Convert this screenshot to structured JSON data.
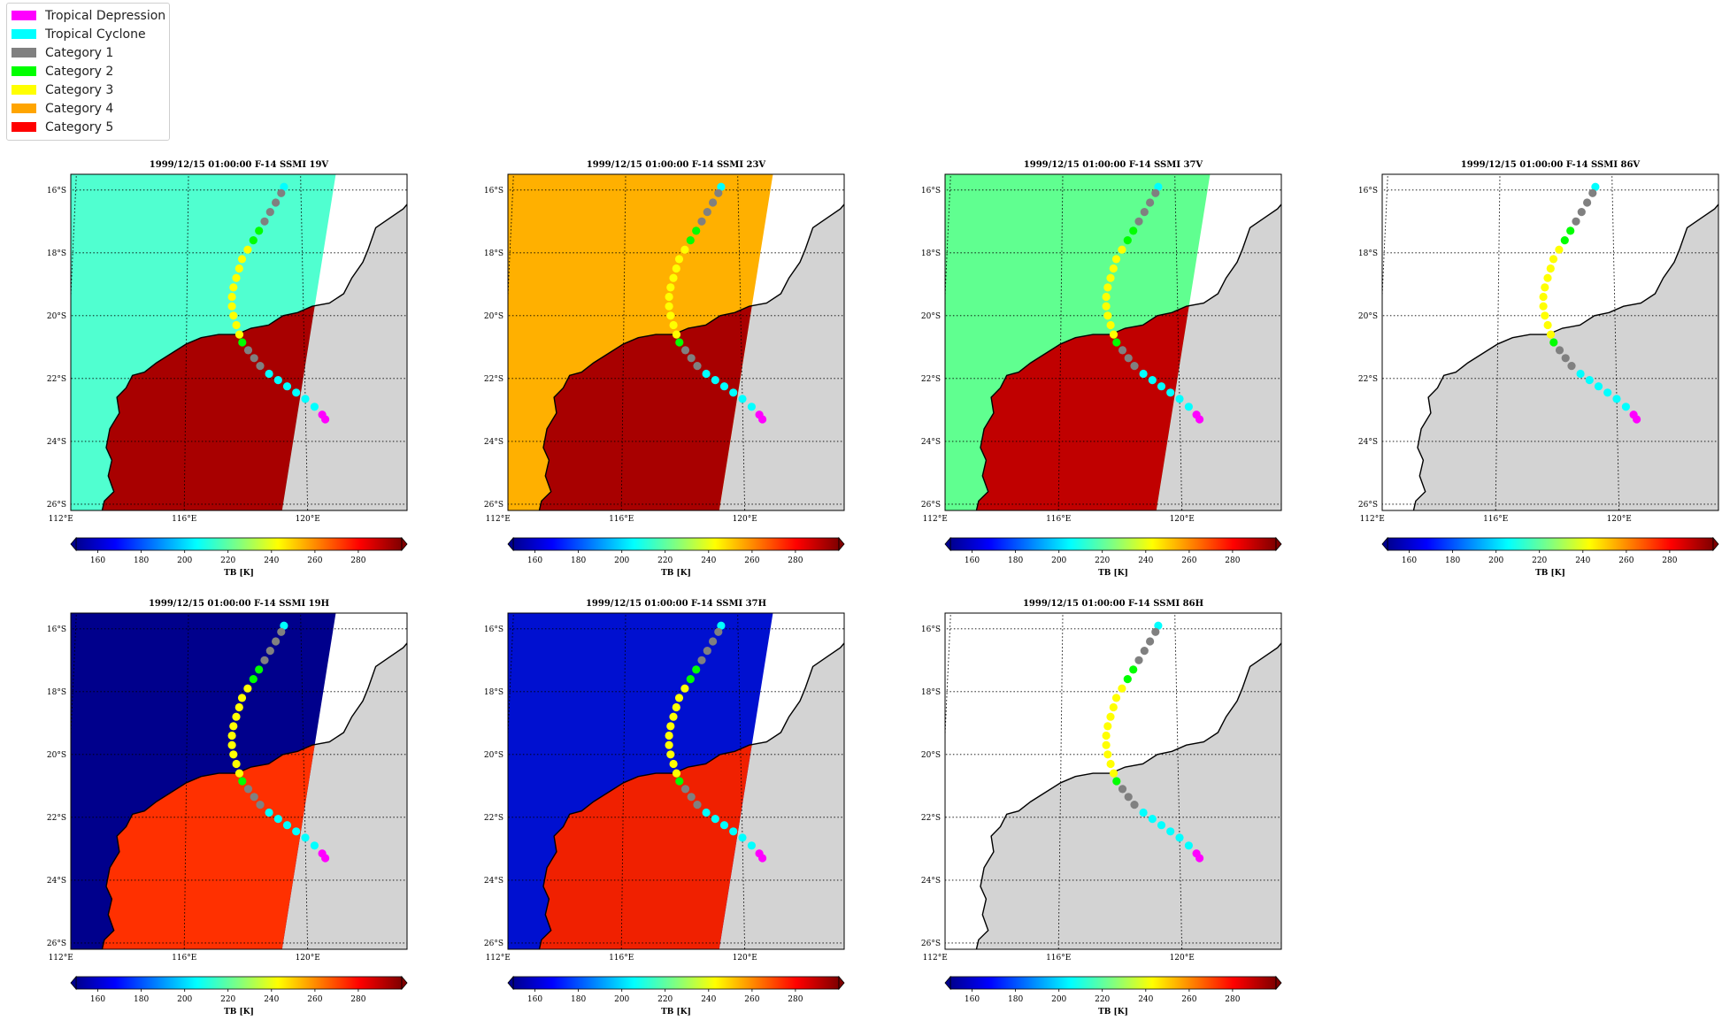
{
  "legend": {
    "items": [
      {
        "label": "Tropical Depression",
        "color": "#ff00ff"
      },
      {
        "label": "Tropical Cyclone",
        "color": "#00ffff"
      },
      {
        "label": "Category 1",
        "color": "#808080"
      },
      {
        "label": "Category 2",
        "color": "#00ff00"
      },
      {
        "label": "Category 3",
        "color": "#ffff00"
      },
      {
        "label": "Category 4",
        "color": "#ffa500"
      },
      {
        "label": "Category 5",
        "color": "#ff0000"
      }
    ]
  },
  "map": {
    "lon_ticks": [
      "112°E",
      "116°E",
      "120°E"
    ],
    "lat_ticks": [
      "16°S",
      "18°S",
      "20°S",
      "22°S",
      "24°S",
      "26°S"
    ],
    "land_color": "#d3d3d3",
    "grid": "dotted"
  },
  "colorbar": {
    "label": "TB [K]",
    "ticks": [
      "160",
      "180",
      "200",
      "220",
      "240",
      "260",
      "280"
    ],
    "colormap": "jet",
    "range": [
      150,
      300
    ]
  },
  "panels": [
    {
      "title": "1999/12/15 01:00:00  F-14 SSMI 19V",
      "ocean": "#50ffd0",
      "land": "#a80000",
      "swath": true
    },
    {
      "title": "1999/12/15 01:00:00  F-14 SSMI 23V",
      "ocean": "#ffb000",
      "land": "#a80000",
      "swath": true
    },
    {
      "title": "1999/12/15 01:00:00  F-14 SSMI 37V",
      "ocean": "#60ff90",
      "land": "#c00000",
      "swath": true
    },
    {
      "title": "1999/12/15 01:00:00  F-14 SSMI 86V",
      "ocean": null,
      "land": null,
      "swath": false
    },
    {
      "title": "1999/12/15 01:00:00  F-14 SSMI 19H",
      "ocean": "#00008c",
      "land": "#ff3000",
      "swath": true
    },
    {
      "title": "1999/12/15 01:00:00  F-14 SSMI 37H",
      "ocean": "#0010d0",
      "land": "#f02000",
      "swath": true
    },
    {
      "title": "1999/12/15 01:00:00  F-14 SSMI 86H",
      "ocean": null,
      "land": null,
      "swath": false
    }
  ],
  "track": [
    {
      "lon": 119.4,
      "lat": -15.9,
      "cat": "Tropical Cyclone"
    },
    {
      "lon": 119.3,
      "lat": -16.1,
      "cat": "Category 1"
    },
    {
      "lon": 119.1,
      "lat": -16.4,
      "cat": "Category 1"
    },
    {
      "lon": 118.9,
      "lat": -16.7,
      "cat": "Category 1"
    },
    {
      "lon": 118.7,
      "lat": -17.0,
      "cat": "Category 1"
    },
    {
      "lon": 118.5,
      "lat": -17.3,
      "cat": "Category 2"
    },
    {
      "lon": 118.3,
      "lat": -17.6,
      "cat": "Category 2"
    },
    {
      "lon": 118.1,
      "lat": -17.9,
      "cat": "Category 3"
    },
    {
      "lon": 117.9,
      "lat": -18.2,
      "cat": "Category 3"
    },
    {
      "lon": 117.8,
      "lat": -18.5,
      "cat": "Category 3"
    },
    {
      "lon": 117.7,
      "lat": -18.8,
      "cat": "Category 3"
    },
    {
      "lon": 117.6,
      "lat": -19.1,
      "cat": "Category 3"
    },
    {
      "lon": 117.55,
      "lat": -19.4,
      "cat": "Category 3"
    },
    {
      "lon": 117.55,
      "lat": -19.7,
      "cat": "Category 3"
    },
    {
      "lon": 117.6,
      "lat": -20.0,
      "cat": "Category 3"
    },
    {
      "lon": 117.7,
      "lat": -20.3,
      "cat": "Category 3"
    },
    {
      "lon": 117.8,
      "lat": -20.6,
      "cat": "Category 3"
    },
    {
      "lon": 117.9,
      "lat": -20.85,
      "cat": "Category 2"
    },
    {
      "lon": 118.1,
      "lat": -21.1,
      "cat": "Category 1"
    },
    {
      "lon": 118.3,
      "lat": -21.35,
      "cat": "Category 1"
    },
    {
      "lon": 118.5,
      "lat": -21.6,
      "cat": "Category 1"
    },
    {
      "lon": 118.8,
      "lat": -21.85,
      "cat": "Tropical Cyclone"
    },
    {
      "lon": 119.1,
      "lat": -22.05,
      "cat": "Tropical Cyclone"
    },
    {
      "lon": 119.4,
      "lat": -22.25,
      "cat": "Tropical Cyclone"
    },
    {
      "lon": 119.7,
      "lat": -22.45,
      "cat": "Tropical Cyclone"
    },
    {
      "lon": 120.0,
      "lat": -22.65,
      "cat": "Tropical Cyclone"
    },
    {
      "lon": 120.3,
      "lat": -22.9,
      "cat": "Tropical Cyclone"
    },
    {
      "lon": 120.55,
      "lat": -23.15,
      "cat": "Tropical Depression"
    },
    {
      "lon": 120.65,
      "lat": -23.3,
      "cat": "Tropical Depression"
    }
  ]
}
